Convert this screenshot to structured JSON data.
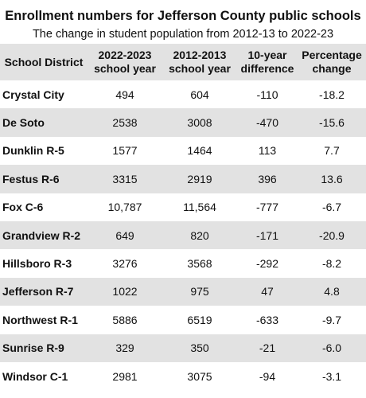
{
  "chart_data": {
    "type": "table",
    "title": "Enrollment numbers for Jefferson County public schools",
    "subtitle": "The change in student population from 2012-13 to 2022-23",
    "columns": [
      "School District",
      "2022-2023 school year",
      "2012-2013 school year",
      "10-year difference",
      "Percentage change"
    ],
    "rows": [
      [
        "Crystal City",
        "494",
        "604",
        "-110",
        "-18.2"
      ],
      [
        "De Soto",
        "2538",
        "3008",
        "-470",
        "-15.6"
      ],
      [
        "Dunklin R-5",
        "1577",
        "1464",
        "113",
        "7.7"
      ],
      [
        "Festus R-6",
        "3315",
        "2919",
        "396",
        "13.6"
      ],
      [
        "Fox C-6",
        "10,787",
        "11,564",
        "-777",
        "-6.7"
      ],
      [
        "Grandview R-2",
        "649",
        "820",
        "-171",
        "-20.9"
      ],
      [
        "Hillsboro R-3",
        "3276",
        "3568",
        "-292",
        "-8.2"
      ],
      [
        "Jefferson R-7",
        "1022",
        "975",
        "47",
        "4.8"
      ],
      [
        "Northwest R-1",
        "5886",
        "6519",
        "-633",
        "-9.7"
      ],
      [
        "Sunrise R-9",
        "329",
        "350",
        "-21",
        "-6.0"
      ],
      [
        "Windsor C-1",
        "2981",
        "3075",
        "-94",
        "-3.1"
      ]
    ],
    "stripe_color": "#e2e2e2"
  }
}
